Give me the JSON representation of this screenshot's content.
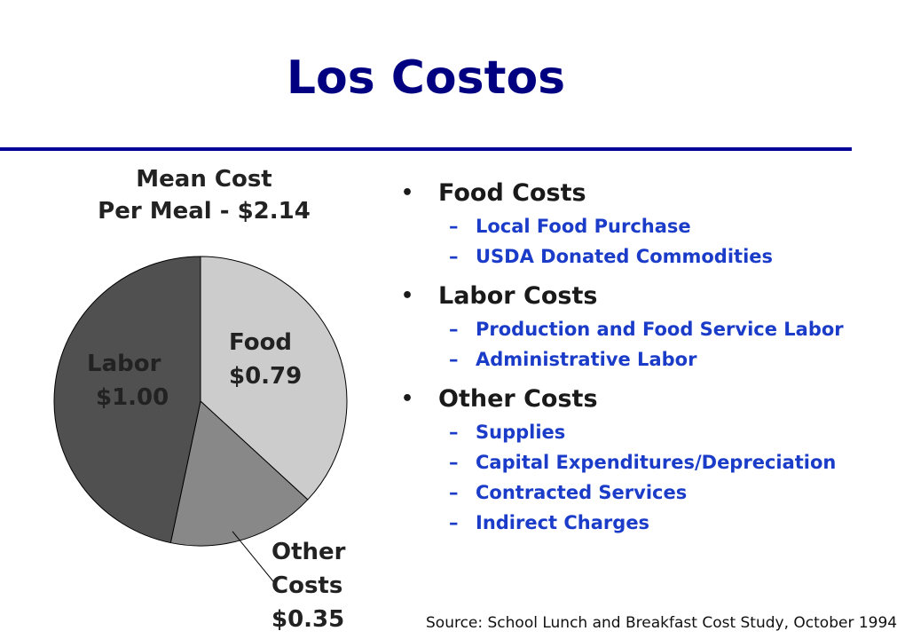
{
  "title": "Los Costos",
  "chart_data": {
    "type": "pie",
    "title_lines": [
      "Mean Cost",
      "Per Meal - $2.14"
    ],
    "slices": [
      {
        "label": "Food",
        "value": 0.79,
        "display": "$0.79",
        "color": "#cccccc"
      },
      {
        "label": "Other Costs",
        "value": 0.35,
        "display": "$0.35",
        "color": "#888888"
      },
      {
        "label": "Labor",
        "value": 1.0,
        "display": "$1.00",
        "color": "#505050"
      }
    ],
    "labels": {
      "food": [
        "Food",
        "$0.79"
      ],
      "labor": [
        "Labor",
        "$1.00"
      ],
      "other": [
        "Other",
        "Costs",
        "$0.35"
      ]
    }
  },
  "bullets": [
    {
      "label": "Food Costs",
      "items": [
        "Local Food Purchase",
        "USDA Donated Commodities"
      ]
    },
    {
      "label": "Labor Costs",
      "items": [
        "Production and Food Service Labor",
        "Administrative Labor"
      ]
    },
    {
      "label": "Other Costs",
      "items": [
        "Supplies",
        "Capital Expenditures/Depreciation",
        "Contracted Services",
        "Indirect Charges"
      ]
    }
  ],
  "source": "Source: School Lunch and Breakfast Cost Study, October 1994"
}
